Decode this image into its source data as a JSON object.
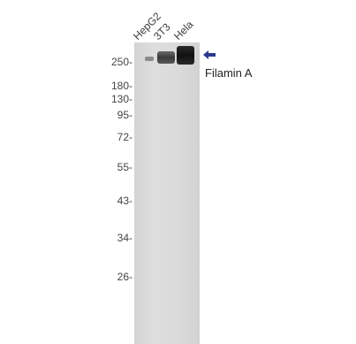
{
  "lanes": [
    "HepG2",
    "3T3",
    "Hela"
  ],
  "markers": [
    "250-",
    "180-",
    "130-",
    "95-",
    "72-",
    "55-",
    "43-",
    "34-",
    "26-"
  ],
  "target_label": "Filamin A",
  "colors": {
    "arrow": "#2b3a8c",
    "band": "#1c1c1c",
    "membrane": "#d9d9d9"
  }
}
